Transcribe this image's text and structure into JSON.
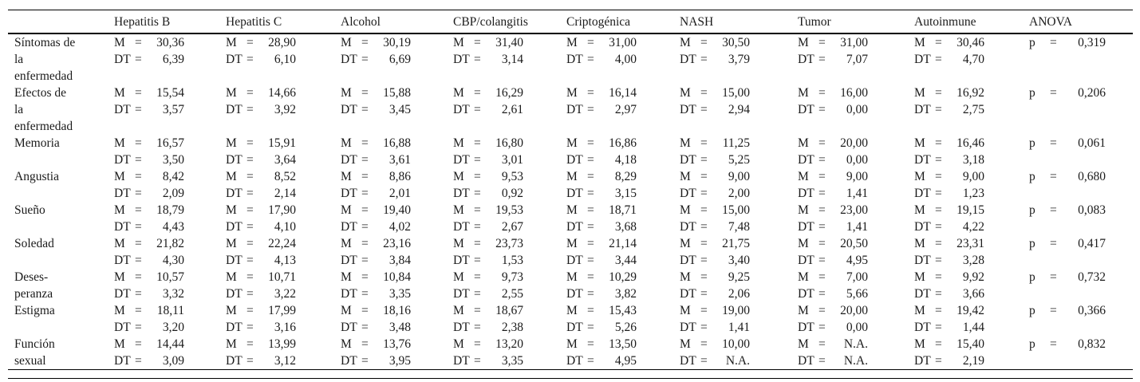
{
  "table": {
    "columns": [
      "Hepatitis B",
      "Hepatitis C",
      "Alcohol",
      "CBP/colangitis",
      "Criptogénica",
      "NASH",
      "Tumor",
      "Autoinmune",
      "ANOVA"
    ],
    "m_label": "M",
    "dt_label": "DT",
    "p_label": "p",
    "eq": "=",
    "rows": [
      {
        "label": "Síntomas de\nla\nenfermedad",
        "m": [
          "30,36",
          "28,90",
          "30,19",
          "31,40",
          "31,00",
          "30,50",
          "31,00",
          "30,46"
        ],
        "dt": [
          "6,39",
          "6,10",
          "6,69",
          "3,14",
          "4,00",
          "3,79",
          "7,07",
          "4,70"
        ],
        "p": "0,319"
      },
      {
        "label": "Efectos de\nla\nenfermedad",
        "m": [
          "15,54",
          "14,66",
          "15,88",
          "16,29",
          "16,14",
          "15,00",
          "16,00",
          "16,92"
        ],
        "dt": [
          "3,57",
          "3,92",
          "3,45",
          "2,61",
          "2,97",
          "2,94",
          "0,00",
          "2,75"
        ],
        "p": "0,206"
      },
      {
        "label": "Memoria",
        "m": [
          "16,57",
          "15,91",
          "16,88",
          "16,80",
          "16,86",
          "11,25",
          "20,00",
          "16,46"
        ],
        "dt": [
          "3,50",
          "3,64",
          "3,61",
          "3,01",
          "4,18",
          "5,25",
          "0,00",
          "3,18"
        ],
        "p": "0,061"
      },
      {
        "label": "Angustia",
        "m": [
          "8,42",
          "8,52",
          "8,86",
          "9,53",
          "8,29",
          "9,00",
          "9,00",
          "9,00"
        ],
        "dt": [
          "2,09",
          "2,14",
          "2,01",
          "0,92",
          "3,15",
          "2,00",
          "1,41",
          "1,23"
        ],
        "p": "0,680"
      },
      {
        "label": "Sueño",
        "m": [
          "18,79",
          "17,90",
          "19,40",
          "19,53",
          "18,71",
          "15,00",
          "23,00",
          "19,15"
        ],
        "dt": [
          "4,43",
          "4,10",
          "4,02",
          "2,67",
          "3,68",
          "7,48",
          "1,41",
          "4,22"
        ],
        "p": "0,083"
      },
      {
        "label": "Soledad",
        "m": [
          "21,82",
          "22,24",
          "23,16",
          "23,73",
          "21,14",
          "21,75",
          "20,50",
          "23,31"
        ],
        "dt": [
          "4,30",
          "4,13",
          "3,84",
          "1,53",
          "3,44",
          "3,40",
          "4,95",
          "3,28"
        ],
        "p": "0,417"
      },
      {
        "label": "Deses-\nperanza",
        "m": [
          "10,57",
          "10,71",
          "10,84",
          "9,73",
          "10,29",
          "9,25",
          "7,00",
          "9,92"
        ],
        "dt": [
          "3,32",
          "3,22",
          "3,35",
          "2,55",
          "3,82",
          "2,06",
          "5,66",
          "3,66"
        ],
        "p": "0,732"
      },
      {
        "label": "Estigma",
        "m": [
          "18,11",
          "17,99",
          "18,16",
          "18,67",
          "15,43",
          "19,00",
          "20,00",
          "19,42"
        ],
        "dt": [
          "3,20",
          "3,16",
          "3,48",
          "2,38",
          "5,26",
          "1,41",
          "0,00",
          "1,44"
        ],
        "p": "0,366"
      },
      {
        "label": "Función\nsexual",
        "m": [
          "14,44",
          "13,99",
          "13,76",
          "13,20",
          "13,50",
          "10,00",
          "N.A.",
          "15,40"
        ],
        "dt": [
          "3,09",
          "3,12",
          "3,95",
          "3,35",
          "4,95",
          "N.A.",
          "N.A.",
          "2,19"
        ],
        "p": "0,832"
      }
    ]
  }
}
